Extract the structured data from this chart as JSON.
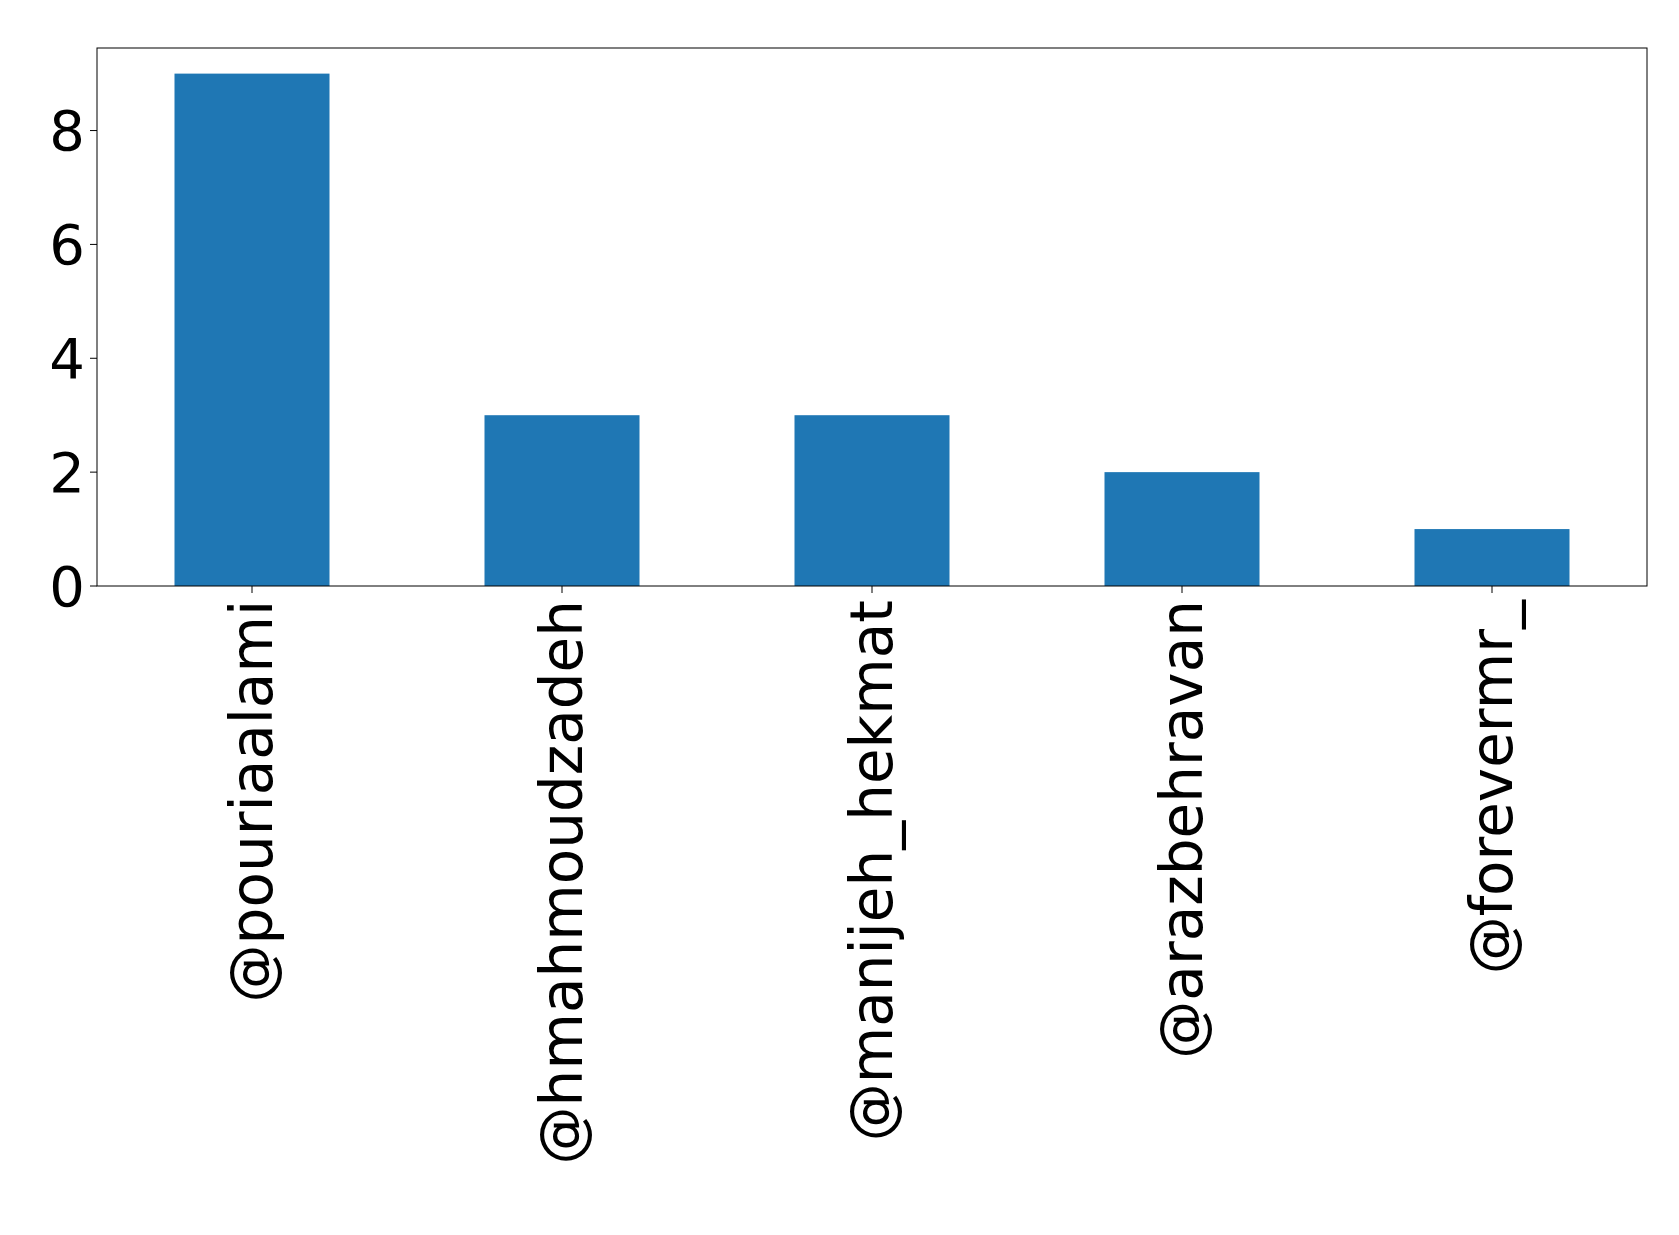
{
  "chart_data": {
    "type": "bar",
    "categories": [
      "@pouriaalami",
      "@hmahmoudzadeh",
      "@manijeh_hekmat",
      "@arazbehravan",
      "@forevermr_"
    ],
    "values": [
      9,
      3,
      3,
      2,
      1
    ],
    "color": "#1f77b4",
    "ylim": [
      0,
      9.45
    ],
    "yticks": [
      0,
      2,
      4,
      6,
      8
    ],
    "grid": false
  }
}
